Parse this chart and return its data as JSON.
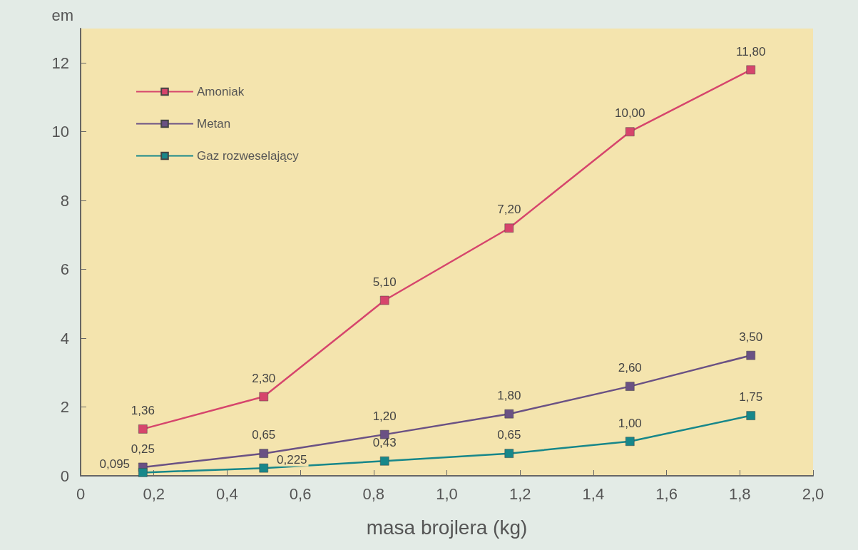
{
  "chart_data": {
    "type": "line",
    "xlabel": "masa brojlera (kg)",
    "ylabel": "em",
    "x": [
      0.17,
      0.5,
      0.83,
      1.17,
      1.5,
      1.83
    ],
    "series": [
      {
        "name": "Amoniak",
        "color": "#d6456c",
        "values": [
          1.36,
          2.3,
          5.1,
          7.2,
          10.0,
          11.8
        ],
        "value_labels": [
          "1,36",
          "2,30",
          "5,10",
          "7,20",
          "10,00",
          "11,80"
        ]
      },
      {
        "name": "Metan",
        "color": "#6a5184",
        "values": [
          0.25,
          0.65,
          1.2,
          1.8,
          2.6,
          3.5
        ],
        "value_labels": [
          "0,25",
          "0,65",
          "1,20",
          "1,80",
          "2,60",
          "3,50"
        ]
      },
      {
        "name": "Gaz rozweselający",
        "color": "#17878a",
        "values": [
          0.095,
          0.225,
          0.43,
          0.65,
          1.0,
          1.75
        ],
        "value_labels": [
          "0,095",
          "0,225",
          "0,43",
          "0,65",
          "1,00",
          "1,75"
        ]
      }
    ],
    "xlim": [
      0,
      2
    ],
    "xticks": [
      0,
      {
        "value": 0.2,
        "label": "0,2"
      },
      {
        "value": 0.4,
        "label": "0,4"
      },
      {
        "value": 0.6,
        "label": "0,6"
      },
      {
        "value": 0.8,
        "label": "0,8"
      },
      {
        "value": 1.0,
        "label": "1,0"
      },
      {
        "value": 1.2,
        "label": "1,2"
      },
      {
        "value": 1.4,
        "label": "1,4"
      },
      {
        "value": 1.6,
        "label": "1,6"
      },
      {
        "value": 1.8,
        "label": "1,8"
      },
      {
        "value": 2.0,
        "label": "2,0"
      }
    ],
    "ylim": [
      0,
      13
    ],
    "yticks": [
      0,
      2,
      4,
      6,
      8,
      10,
      12
    ],
    "grid": false,
    "legend": "top left",
    "marker": "square",
    "line_style": "solid"
  }
}
